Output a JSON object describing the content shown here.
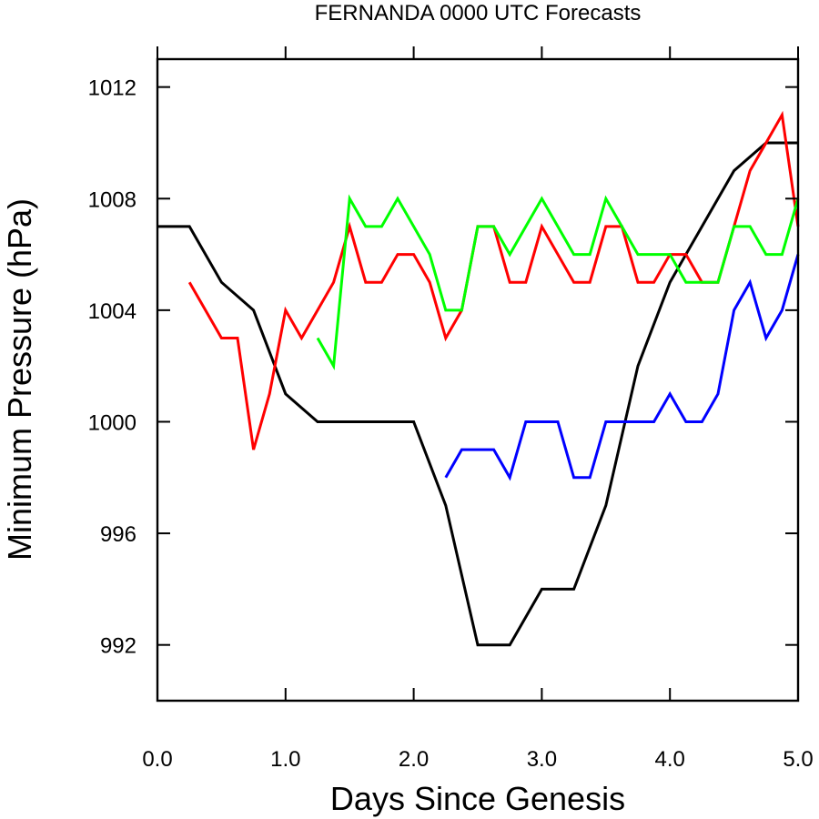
{
  "chart_data": {
    "type": "line",
    "title": "FERNANDA 0000 UTC Forecasts",
    "xlabel": "Days Since Genesis",
    "ylabel": "Minimum Pressure (hPa)",
    "xlim": [
      0.0,
      5.0
    ],
    "ylim": [
      990,
      1013
    ],
    "xticks": [
      0.0,
      1.0,
      2.0,
      3.0,
      4.0,
      5.0
    ],
    "xtick_labels": [
      "0.0",
      "1.0",
      "2.0",
      "3.0",
      "4.0",
      "5.0"
    ],
    "yticks": [
      992,
      996,
      1000,
      1004,
      1008,
      1012
    ],
    "ytick_labels": [
      "992",
      "996",
      "1000",
      "1004",
      "1008",
      "1012"
    ],
    "grid": false,
    "series": [
      {
        "color": "#000000",
        "x": [
          0.0,
          0.25,
          0.5,
          0.75,
          1.0,
          1.25,
          1.5,
          1.75,
          2.0,
          2.25,
          2.5,
          2.75,
          3.0,
          3.25,
          3.5,
          3.75,
          4.0,
          4.25,
          4.5,
          4.75,
          5.0
        ],
        "y": [
          1007,
          1007,
          1005,
          1004,
          1001,
          1000,
          1000,
          1000,
          1000,
          997,
          992,
          992,
          994,
          994,
          997,
          1002,
          1005,
          1007,
          1009,
          1010,
          1010
        ]
      },
      {
        "color": "#ff0000",
        "x": [
          0.25,
          0.5,
          0.625,
          0.75,
          0.875,
          1.0,
          1.125,
          1.25,
          1.375,
          1.5,
          1.625,
          1.75,
          1.875,
          2.0,
          2.125,
          2.25,
          2.375,
          2.5,
          2.625,
          2.75,
          2.875,
          3.0,
          3.125,
          3.25,
          3.375,
          3.5,
          3.625,
          3.75,
          3.875,
          4.0,
          4.125,
          4.25,
          4.375,
          4.5,
          4.625,
          4.75,
          4.875,
          5.0
        ],
        "y": [
          1005,
          1003,
          1003,
          999,
          1001,
          1004,
          1003,
          1004,
          1005,
          1007,
          1005,
          1005,
          1006,
          1006,
          1005,
          1003,
          1004,
          1007,
          1007,
          1005,
          1005,
          1007,
          1006,
          1005,
          1005,
          1007,
          1007,
          1005,
          1005,
          1006,
          1006,
          1005,
          1005,
          1007,
          1009,
          1010,
          1011,
          1007
        ]
      },
      {
        "color": "#00ff00",
        "x": [
          1.25,
          1.375,
          1.5,
          1.625,
          1.75,
          1.875,
          2.0,
          2.125,
          2.25,
          2.375,
          2.5,
          2.625,
          2.75,
          2.875,
          3.0,
          3.125,
          3.25,
          3.375,
          3.5,
          3.625,
          3.75,
          3.875,
          4.0,
          4.125,
          4.25,
          4.375,
          4.5,
          4.625,
          4.75,
          4.875,
          5.0
        ],
        "y": [
          1003,
          1002,
          1008,
          1007,
          1007,
          1008,
          1007,
          1006,
          1004,
          1004,
          1007,
          1007,
          1006,
          1007,
          1008,
          1007,
          1006,
          1006,
          1008,
          1007,
          1006,
          1006,
          1006,
          1005,
          1005,
          1005,
          1007,
          1007,
          1006,
          1006,
          1008
        ]
      },
      {
        "color": "#0000ff",
        "x": [
          2.25,
          2.375,
          2.5,
          2.625,
          2.75,
          2.875,
          3.0,
          3.125,
          3.25,
          3.375,
          3.5,
          3.625,
          3.75,
          3.875,
          4.0,
          4.125,
          4.25,
          4.375,
          4.5,
          4.625,
          4.75,
          4.875,
          5.0
        ],
        "y": [
          998,
          999,
          999,
          999,
          998,
          1000,
          1000,
          1000,
          998,
          998,
          1000,
          1000,
          1000,
          1000,
          1001,
          1000,
          1000,
          1001,
          1004,
          1005,
          1003,
          1004,
          1006
        ]
      }
    ]
  }
}
